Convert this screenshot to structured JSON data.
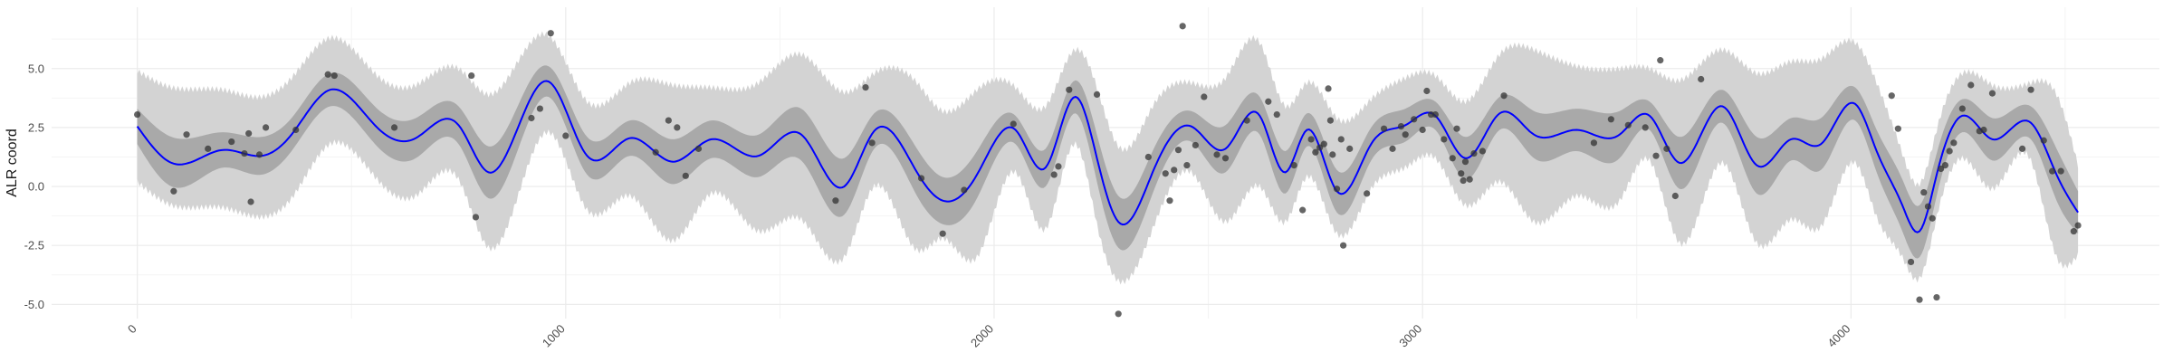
{
  "chart_data": {
    "type": "line",
    "title": "",
    "xlabel": "",
    "ylabel": "ALR coord",
    "xlim": [
      -200,
      4720
    ],
    "ylim": [
      -5.6,
      7.6
    ],
    "grid": true,
    "legend": "none",
    "x_ticks": [
      0,
      1000,
      2000,
      3000,
      4000
    ],
    "x_tick_labels": [
      "0",
      "1000",
      "2000",
      "3000",
      "4000"
    ],
    "y_ticks": [
      -5.0,
      -2.5,
      0.0,
      2.5,
      5.0
    ],
    "y_tick_labels": [
      "-5.0",
      "-2.5",
      "0.0",
      "2.5",
      "5.0"
    ],
    "colors": {
      "mean_line": "#0000ff",
      "inner_band": "#a9a9a9",
      "outer_band": "#d3d3d3",
      "points": "#333333",
      "grid_major": "#ebebeb",
      "grid_minor": "#f4f4f4"
    },
    "series": [
      {
        "x": [
          0,
          80,
          200,
          290,
          360,
          450,
          560,
          650,
          750,
          820,
          960,
          1050,
          1150,
          1250,
          1340,
          1450,
          1550,
          1650,
          1720,
          1820,
          1880,
          1960,
          2050,
          2120,
          2190,
          2240,
          2290,
          2370,
          2460,
          2540,
          2620,
          2680,
          2730,
          2800,
          2880,
          2960,
          3030,
          3100,
          3180,
          3260,
          3360,
          3460,
          3530,
          3600,
          3700,
          3780,
          3860,
          3930,
          4010,
          4060,
          4120,
          4160,
          4200,
          4260,
          4330,
          4420,
          4480,
          4530
        ],
        "values": [
          2.55,
          1.0,
          1.55,
          1.3,
          2.2,
          4.1,
          2.5,
          2.05,
          2.6,
          0.6,
          4.45,
          1.3,
          2.05,
          1.05,
          2.0,
          1.3,
          2.2,
          0.0,
          2.35,
          0.6,
          -0.6,
          0.5,
          2.4,
          0.8,
          3.8,
          1.2,
          -1.5,
          0.6,
          2.55,
          1.6,
          3.0,
          0.6,
          2.4,
          -0.2,
          1.8,
          2.6,
          3.0,
          1.2,
          3.1,
          2.2,
          2.4,
          2.2,
          3.0,
          1.0,
          3.4,
          0.9,
          2.0,
          1.8,
          3.5,
          1.5,
          -0.8,
          -1.9,
          0.5,
          3.0,
          2.0,
          2.7,
          0.5,
          -1.1
        ]
      },
      {
        "x": [
          0,
          80,
          200,
          290,
          360,
          450,
          560,
          650,
          750,
          820,
          960,
          1050,
          1150,
          1250,
          1340,
          1450,
          1550,
          1650,
          1720,
          1820,
          1880,
          1960,
          2050,
          2120,
          2190,
          2240,
          2290,
          2370,
          2460,
          2540,
          2620,
          2680,
          2730,
          2800,
          2880,
          2960,
          3030,
          3100,
          3180,
          3260,
          3360,
          3460,
          3530,
          3600,
          3700,
          3780,
          3860,
          3930,
          4010,
          4060,
          4120,
          4160,
          4200,
          4260,
          4330,
          4420,
          4480,
          4530
        ],
        "values": [
          4.9,
          4.2,
          4.1,
          3.8,
          4.6,
          6.3,
          4.7,
          4.3,
          5.0,
          3.9,
          6.4,
          3.6,
          4.4,
          4.3,
          4.2,
          4.4,
          5.6,
          4.0,
          4.8,
          4.4,
          3.2,
          4.1,
          4.2,
          3.4,
          5.8,
          4.2,
          1.7,
          3.4,
          4.4,
          4.6,
          6.1,
          3.4,
          4.4,
          2.9,
          3.7,
          4.6,
          4.7,
          3.6,
          5.6,
          5.8,
          5.1,
          5.0,
          5.0,
          4.5,
          5.8,
          4.8,
          5.3,
          5.4,
          6.1,
          4.4,
          1.4,
          0.1,
          2.4,
          4.8,
          4.3,
          4.4,
          3.9,
          0.9
        ]
      },
      {
        "x": [
          0,
          80,
          200,
          290,
          360,
          450,
          560,
          650,
          750,
          820,
          960,
          1050,
          1150,
          1250,
          1340,
          1450,
          1550,
          1650,
          1720,
          1820,
          1880,
          1960,
          2050,
          2120,
          2190,
          2240,
          2290,
          2370,
          2460,
          2540,
          2620,
          2680,
          2730,
          2800,
          2880,
          2960,
          3030,
          3100,
          3180,
          3260,
          3360,
          3460,
          3530,
          3600,
          3700,
          3780,
          3860,
          3930,
          4010,
          4060,
          4120,
          4160,
          4200,
          4260,
          4330,
          4420,
          4480,
          4530
        ],
        "values": [
          0.2,
          -0.8,
          -0.9,
          -1.3,
          -0.5,
          1.8,
          0.3,
          -0.4,
          0.3,
          -2.6,
          2.3,
          -1.0,
          -0.4,
          -2.3,
          -0.3,
          -1.9,
          -1.4,
          -3.0,
          0.0,
          -2.7,
          -2.2,
          -3.0,
          0.6,
          -1.8,
          1.8,
          -1.6,
          -4.0,
          -1.8,
          0.6,
          -1.5,
          0.0,
          -1.5,
          0.4,
          -2.0,
          -0.1,
          0.8,
          1.2,
          -0.8,
          0.2,
          -1.5,
          -0.4,
          -0.6,
          1.1,
          -2.4,
          1.0,
          -2.4,
          -1.4,
          -1.7,
          1.0,
          -1.3,
          -3.0,
          -3.9,
          -1.3,
          1.2,
          -0.1,
          1.1,
          -3.0,
          -2.9
        ]
      },
      {
        "x": [
          0,
          80,
          200,
          290,
          360,
          450,
          560,
          650,
          750,
          820,
          960,
          1050,
          1150,
          1250,
          1340,
          1450,
          1550,
          1650,
          1720,
          1820,
          1880,
          1960,
          2050,
          2120,
          2190,
          2240,
          2290,
          2370,
          2460,
          2540,
          2620,
          2680,
          2730,
          2800,
          2880,
          2960,
          3030,
          3100,
          3180,
          3260,
          3360,
          3460,
          3530,
          3600,
          3700,
          3780,
          3860,
          3930,
          4010,
          4060,
          4120,
          4160,
          4200,
          4260,
          4330,
          4420,
          4480,
          4530
        ],
        "values": [
          3.3,
          2.1,
          2.3,
          2.1,
          2.9,
          4.8,
          3.3,
          2.9,
          3.4,
          1.7,
          5.1,
          2.1,
          2.8,
          2.0,
          2.8,
          2.2,
          3.3,
          1.2,
          3.1,
          1.6,
          0.4,
          1.5,
          3.0,
          1.6,
          4.5,
          2.2,
          -0.4,
          1.5,
          3.2,
          2.6,
          3.8,
          1.5,
          3.1,
          0.7,
          2.5,
          3.3,
          3.6,
          2.1,
          3.8,
          3.2,
          3.3,
          3.2,
          3.6,
          2.1,
          4.1,
          2.1,
          2.9,
          2.9,
          4.2,
          2.4,
          0.3,
          -0.8,
          1.4,
          3.7,
          2.9,
          3.4,
          1.6,
          -0.2
        ]
      },
      {
        "x": [
          0,
          80,
          200,
          290,
          360,
          450,
          560,
          650,
          750,
          820,
          960,
          1050,
          1150,
          1250,
          1340,
          1450,
          1550,
          1650,
          1720,
          1820,
          1880,
          1960,
          2050,
          2120,
          2190,
          2240,
          2290,
          2370,
          2460,
          2540,
          2620,
          2680,
          2730,
          2800,
          2880,
          2960,
          3030,
          3100,
          3180,
          3260,
          3360,
          3460,
          3530,
          3600,
          3700,
          3780,
          3860,
          3930,
          4010,
          4060,
          4120,
          4160,
          4200,
          4260,
          4330,
          4420,
          4480,
          4530
        ],
        "values": [
          1.8,
          0.0,
          0.8,
          0.5,
          1.5,
          3.4,
          1.7,
          1.2,
          1.8,
          -0.5,
          3.8,
          0.5,
          1.3,
          0.1,
          1.2,
          0.4,
          1.1,
          -1.2,
          1.6,
          -0.4,
          -1.6,
          -0.5,
          1.8,
          0.0,
          3.1,
          0.2,
          -2.6,
          -0.3,
          1.9,
          0.6,
          2.2,
          -0.3,
          1.7,
          -1.1,
          1.1,
          1.9,
          2.4,
          0.3,
          2.4,
          1.2,
          1.5,
          1.2,
          2.4,
          -0.1,
          2.7,
          -0.3,
          1.1,
          0.7,
          2.8,
          0.6,
          -1.9,
          -3.0,
          -0.4,
          2.3,
          1.1,
          2.0,
          -0.6,
          -2.0
        ]
      }
    ],
    "points": [
      {
        "x": 0,
        "y": 3.05
      },
      {
        "x": 85,
        "y": -0.2
      },
      {
        "x": 115,
        "y": 2.2
      },
      {
        "x": 165,
        "y": 1.6
      },
      {
        "x": 220,
        "y": 1.9
      },
      {
        "x": 250,
        "y": 1.4
      },
      {
        "x": 260,
        "y": 2.25
      },
      {
        "x": 265,
        "y": -0.65
      },
      {
        "x": 285,
        "y": 1.35
      },
      {
        "x": 300,
        "y": 2.5
      },
      {
        "x": 370,
        "y": 2.4
      },
      {
        "x": 445,
        "y": 4.75
      },
      {
        "x": 460,
        "y": 4.7
      },
      {
        "x": 600,
        "y": 2.5
      },
      {
        "x": 780,
        "y": 4.7
      },
      {
        "x": 790,
        "y": -1.3
      },
      {
        "x": 920,
        "y": 2.9
      },
      {
        "x": 940,
        "y": 3.3
      },
      {
        "x": 965,
        "y": 6.5
      },
      {
        "x": 1000,
        "y": 2.15
      },
      {
        "x": 1210,
        "y": 1.45
      },
      {
        "x": 1240,
        "y": 2.8
      },
      {
        "x": 1260,
        "y": 2.5
      },
      {
        "x": 1280,
        "y": 0.45
      },
      {
        "x": 1310,
        "y": 1.6
      },
      {
        "x": 1630,
        "y": -0.6
      },
      {
        "x": 1700,
        "y": 4.2
      },
      {
        "x": 1715,
        "y": 1.85
      },
      {
        "x": 1830,
        "y": 0.35
      },
      {
        "x": 1880,
        "y": -2.0
      },
      {
        "x": 1930,
        "y": -0.15
      },
      {
        "x": 2045,
        "y": 2.65
      },
      {
        "x": 2140,
        "y": 0.5
      },
      {
        "x": 2150,
        "y": 0.85
      },
      {
        "x": 2175,
        "y": 4.1
      },
      {
        "x": 2240,
        "y": 3.9
      },
      {
        "x": 2290,
        "y": -5.4
      },
      {
        "x": 2360,
        "y": 1.25
      },
      {
        "x": 2400,
        "y": 0.55
      },
      {
        "x": 2410,
        "y": -0.6
      },
      {
        "x": 2420,
        "y": 0.7
      },
      {
        "x": 2430,
        "y": 1.55
      },
      {
        "x": 2440,
        "y": 6.8
      },
      {
        "x": 2450,
        "y": 0.9
      },
      {
        "x": 2470,
        "y": 1.75
      },
      {
        "x": 2490,
        "y": 3.8
      },
      {
        "x": 2520,
        "y": 1.35
      },
      {
        "x": 2540,
        "y": 1.2
      },
      {
        "x": 2590,
        "y": 2.8
      },
      {
        "x": 2640,
        "y": 3.6
      },
      {
        "x": 2660,
        "y": 3.05
      },
      {
        "x": 2700,
        "y": 0.9
      },
      {
        "x": 2720,
        "y": -1.0
      },
      {
        "x": 2740,
        "y": 2.0
      },
      {
        "x": 2750,
        "y": 1.45
      },
      {
        "x": 2760,
        "y": 1.65
      },
      {
        "x": 2770,
        "y": 1.8
      },
      {
        "x": 2780,
        "y": 4.15
      },
      {
        "x": 2785,
        "y": 2.8
      },
      {
        "x": 2790,
        "y": 1.35
      },
      {
        "x": 2800,
        "y": -0.1
      },
      {
        "x": 2810,
        "y": 2.0
      },
      {
        "x": 2815,
        "y": -2.5
      },
      {
        "x": 2830,
        "y": 1.6
      },
      {
        "x": 2870,
        "y": -0.3
      },
      {
        "x": 2910,
        "y": 2.45
      },
      {
        "x": 2930,
        "y": 1.6
      },
      {
        "x": 2950,
        "y": 2.55
      },
      {
        "x": 2960,
        "y": 2.2
      },
      {
        "x": 2980,
        "y": 2.85
      },
      {
        "x": 3000,
        "y": 2.4
      },
      {
        "x": 3010,
        "y": 4.05
      },
      {
        "x": 3020,
        "y": 3.05
      },
      {
        "x": 3030,
        "y": 3.05
      },
      {
        "x": 3050,
        "y": 2.0
      },
      {
        "x": 3070,
        "y": 1.2
      },
      {
        "x": 3080,
        "y": 2.45
      },
      {
        "x": 3090,
        "y": 0.55
      },
      {
        "x": 3095,
        "y": 0.25
      },
      {
        "x": 3100,
        "y": 1.05
      },
      {
        "x": 3110,
        "y": 0.3
      },
      {
        "x": 3120,
        "y": 1.4
      },
      {
        "x": 3140,
        "y": 1.5
      },
      {
        "x": 3190,
        "y": 3.85
      },
      {
        "x": 3400,
        "y": 1.85
      },
      {
        "x": 3440,
        "y": 2.85
      },
      {
        "x": 3480,
        "y": 2.6
      },
      {
        "x": 3520,
        "y": 2.5
      },
      {
        "x": 3545,
        "y": 1.3
      },
      {
        "x": 3555,
        "y": 5.35
      },
      {
        "x": 3570,
        "y": 1.6
      },
      {
        "x": 3590,
        "y": -0.4
      },
      {
        "x": 3650,
        "y": 4.55
      },
      {
        "x": 4095,
        "y": 3.85
      },
      {
        "x": 4110,
        "y": 2.45
      },
      {
        "x": 4140,
        "y": -3.2
      },
      {
        "x": 4160,
        "y": -4.8
      },
      {
        "x": 4170,
        "y": -0.25
      },
      {
        "x": 4180,
        "y": -0.85
      },
      {
        "x": 4190,
        "y": -1.35
      },
      {
        "x": 4200,
        "y": -4.7
      },
      {
        "x": 4210,
        "y": 0.75
      },
      {
        "x": 4220,
        "y": 0.9
      },
      {
        "x": 4230,
        "y": 1.5
      },
      {
        "x": 4240,
        "y": 1.85
      },
      {
        "x": 4260,
        "y": 3.3
      },
      {
        "x": 4280,
        "y": 4.3
      },
      {
        "x": 4300,
        "y": 2.35
      },
      {
        "x": 4310,
        "y": 2.4
      },
      {
        "x": 4330,
        "y": 3.95
      },
      {
        "x": 4400,
        "y": 1.6
      },
      {
        "x": 4420,
        "y": 4.1
      },
      {
        "x": 4450,
        "y": 1.95
      },
      {
        "x": 4470,
        "y": 0.65
      },
      {
        "x": 4490,
        "y": 0.65
      },
      {
        "x": 4520,
        "y": -1.9
      },
      {
        "x": 4530,
        "y": -1.65
      }
    ]
  }
}
